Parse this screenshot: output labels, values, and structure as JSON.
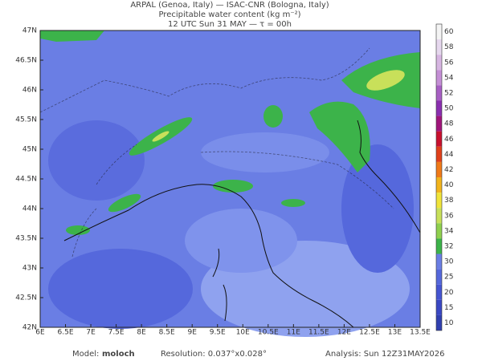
{
  "header": {
    "line1": "ARPAL (Genoa, Italy)  —  ISAC-CNR (Bologna, Italy)",
    "line2": "Precipitable water content (kg m⁻²)",
    "line3": "12 UTC Sun 31 MAY  —  τ = 00h"
  },
  "lat_labels": [
    "47N",
    "46.5N",
    "46N",
    "45.5N",
    "45N",
    "44.5N",
    "44N",
    "43.5N",
    "43N",
    "42.5N",
    "42N"
  ],
  "lon_labels": [
    "6E",
    "6.5E",
    "7E",
    "7.5E",
    "8E",
    "8.5E",
    "9E",
    "9.5E",
    "10E",
    "10.5E",
    "11E",
    "11.5E",
    "12E",
    "12.5E",
    "13E",
    "13.5E"
  ],
  "colorbar": {
    "ticks": [
      60,
      58,
      56,
      54,
      52,
      50,
      48,
      46,
      44,
      42,
      40,
      38,
      36,
      34,
      32,
      30,
      25,
      20,
      15,
      10
    ],
    "colors": [
      "#f4f4f4",
      "#e6d8ee",
      "#d7b6e2",
      "#c58fd6",
      "#a85fc4",
      "#8a2fb0",
      "#a0147a",
      "#c8102e",
      "#e0401a",
      "#f07a18",
      "#f2b41c",
      "#f0e43a",
      "#c8e05a",
      "#8fd04e",
      "#3cb34a",
      "#6a7ee4",
      "#5568dc",
      "#4555d2",
      "#3a48c4",
      "#3040b0"
    ]
  },
  "footer": {
    "model_label": "Model:",
    "model": "moloch",
    "resolution": "Resolution: 0.037°x0.028°",
    "analysis": "Analysis: Sun 12Z31MAY2026"
  }
}
